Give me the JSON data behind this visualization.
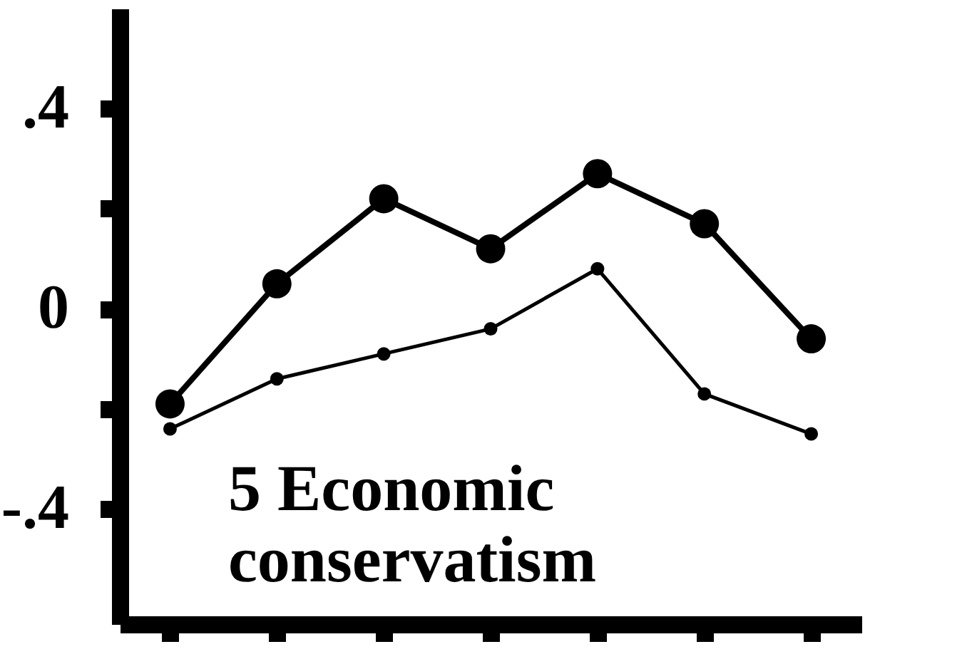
{
  "chart_data": {
    "type": "line",
    "categories": [
      null,
      null,
      null,
      null,
      null,
      null,
      null
    ],
    "series": [
      {
        "color": "#000000",
        "values": [
          -0.19,
          0.05,
          0.22,
          0.12,
          0.27,
          0.17,
          -0.06
        ]
      },
      {
        "color": "#000000",
        "values": [
          -0.24,
          -0.14,
          -0.09,
          -0.04,
          0.08,
          -0.17,
          -0.25
        ]
      }
    ],
    "ylim": [
      -0.63,
      0.6
    ],
    "yticks": [
      {
        "value": 0.4,
        "label": ".4"
      },
      {
        "value": 0.2,
        "label": null
      },
      0,
      {
        "value": -0.2,
        "label": null
      },
      {
        "value": -0.4,
        "label": "-.4"
      }
    ],
    "annotations": [
      "5 Economic conservatism"
    ],
    "tick_labels": "y",
    "marker": "circle",
    "line_style": "solid"
  }
}
